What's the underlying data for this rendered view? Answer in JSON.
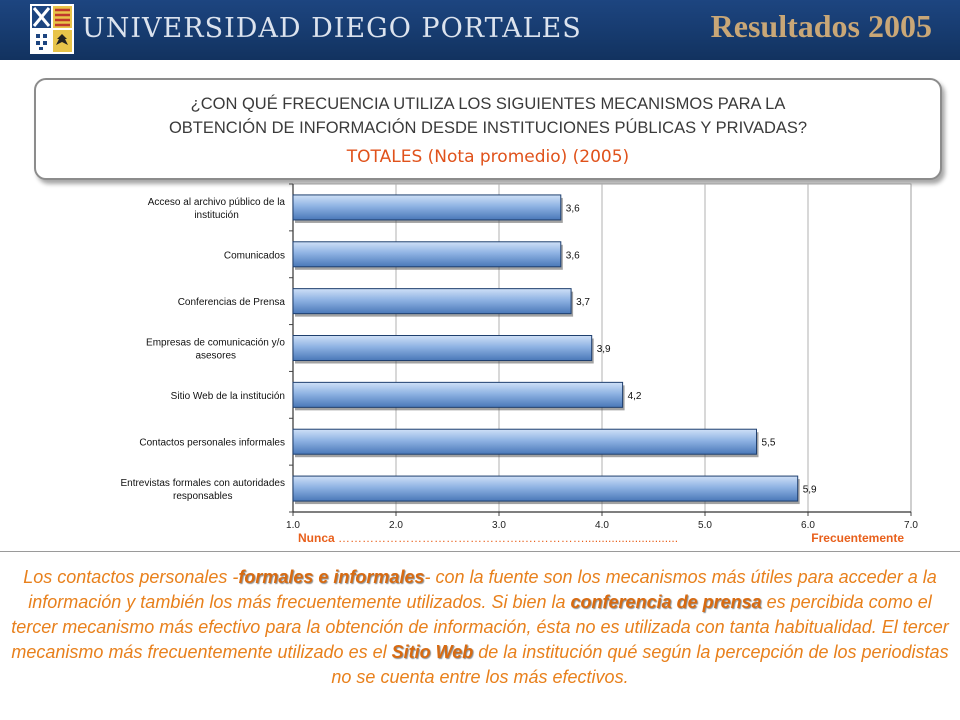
{
  "header": {
    "university": "UNIVERSIDAD DIEGO PORTALES",
    "title": "Resultados 2005",
    "bg_color": "#163a6d",
    "crest_icon": "university-crest-icon"
  },
  "question": {
    "line1": "¿CON QUÉ FRECUENCIA UTILIZA LOS SIGUIENTES MECANISMOS PARA LA",
    "line2": "OBTENCIÓN DE INFORMACIÓN DESDE INSTITUCIONES PÚBLICAS Y PRIVADAS?",
    "subtitle": "TOTALES (Nota promedio) (2005)"
  },
  "chart_data": {
    "type": "bar",
    "orientation": "horizontal",
    "categories": [
      [
        "Acceso al archivo público de la",
        "institución"
      ],
      [
        "Comunicados"
      ],
      [
        "Conferencias de Prensa"
      ],
      [
        "Empresas de comunicación y/o",
        "asesores"
      ],
      [
        "Sitio Web de la institución"
      ],
      [
        "Contactos personales informales"
      ],
      [
        "Entrevistas formales con autoridades",
        "responsables"
      ]
    ],
    "values": [
      3.6,
      3.6,
      3.7,
      3.9,
      4.2,
      5.5,
      5.9
    ],
    "value_labels": [
      "3,6",
      "3,6",
      "3,7",
      "3,9",
      "4,2",
      "5,5",
      "5,9"
    ],
    "xlim": [
      1.0,
      7.0
    ],
    "xticks": [
      "1,0",
      "2,0",
      "3,0",
      "4,0",
      "5,0",
      "6,0",
      "7,0"
    ],
    "grid": true,
    "bar_color": "#8fb3e3",
    "scale_left": "Nunca",
    "scale_dots": "………………………………………..……………............................",
    "scale_right": "Frecuentemente"
  },
  "paragraph": {
    "p1": "Los contactos personales -",
    "h1": "formales e informales",
    "p2": "- con la fuente son los mecanismos más útiles para acceder a la información y también los más frecuentemente utilizados. Si bien la ",
    "h2": "conferencia de prensa",
    "p3": " es percibida como el tercer mecanismo más efectivo para la obtención de información, ésta no es utilizada con tanta habitualidad. El tercer mecanismo más frecuentemente utilizado es el ",
    "h3": "Sitio Web",
    "p4": " de la institución qué según la percepción de los periodistas no se cuenta entre los más efectivos."
  }
}
